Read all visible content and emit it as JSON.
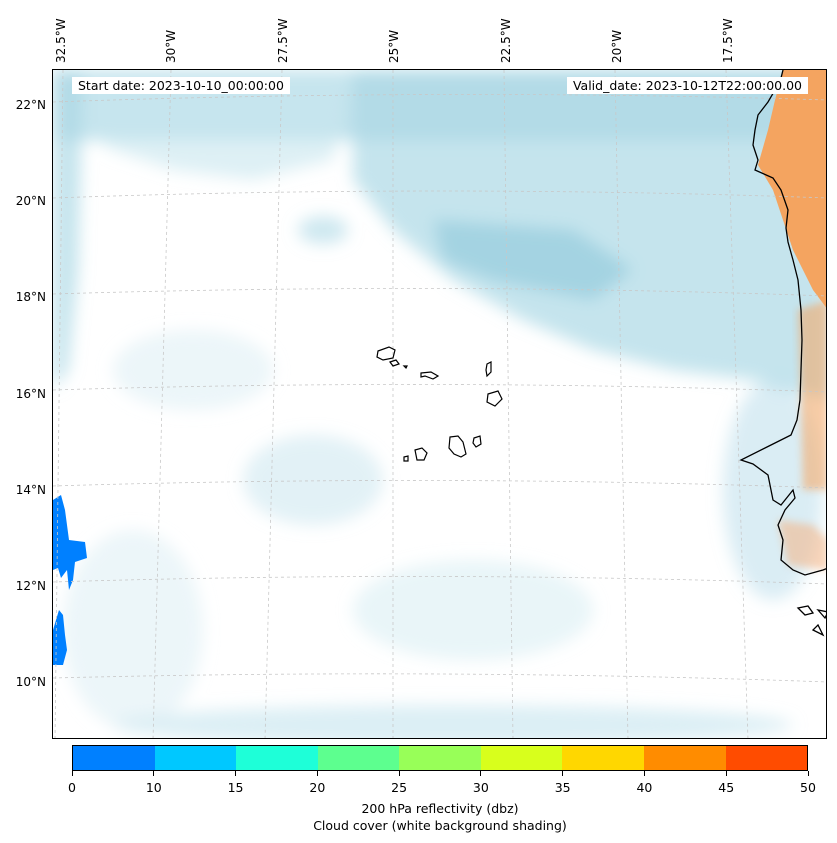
{
  "map": {
    "longitude_labels": [
      "32.5°W",
      "30°W",
      "27.5°W",
      "25°W",
      "22.5°W",
      "20°W",
      "17.5°W"
    ],
    "latitude_labels": [
      "22°N",
      "20°N",
      "18°N",
      "16°N",
      "14°N",
      "12°N",
      "10°N"
    ],
    "start_date": "Start date: 2023-10-10_00:00:00",
    "valid_date": "Valid_date: 2023-10-12T22:00:00.00",
    "colors": {
      "cloud_cover": "#add8e6",
      "land_warm": "#f4a460",
      "reflectivity_low": "#0080ff",
      "coastline": "#000000",
      "gridline": "#c8c8c8"
    }
  },
  "colorbar": {
    "colors": [
      "#0080ff",
      "#00c8ff",
      "#1effd8",
      "#5dff8f",
      "#98ff58",
      "#d8ff1c",
      "#ffd700",
      "#ff8c00",
      "#ff4c00"
    ],
    "tick_labels": [
      "0",
      "10",
      "15",
      "20",
      "25",
      "30",
      "35",
      "40",
      "45",
      "50"
    ],
    "label_line1": "200 hPa reflectivity (dbz)",
    "label_line2": "Cloud cover (white background shading)"
  }
}
